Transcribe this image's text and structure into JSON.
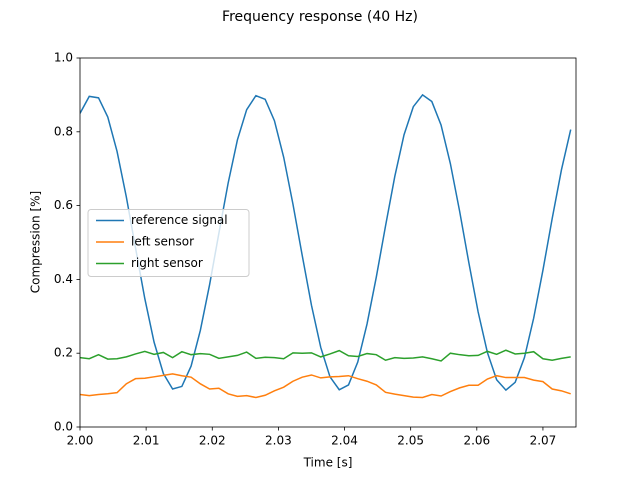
{
  "chart_data": {
    "type": "line",
    "title": "Frequency response (40 Hz)",
    "xlabel": "Time [s]",
    "ylabel": "Compression [%]",
    "x": [
      2.0,
      2.0014,
      2.0028,
      2.0042,
      2.0056,
      2.007,
      2.0084,
      2.0098,
      2.0112,
      2.0126,
      2.014,
      2.0154,
      2.0168,
      2.0182,
      2.0196,
      2.021,
      2.0224,
      2.0238,
      2.0252,
      2.0266,
      2.028,
      2.0294,
      2.0308,
      2.0322,
      2.0336,
      2.035,
      2.0364,
      2.0378,
      2.0392,
      2.0406,
      2.042,
      2.0434,
      2.0448,
      2.0462,
      2.0476,
      2.049,
      2.0504,
      2.0518,
      2.0532,
      2.0546,
      2.056,
      2.0574,
      2.0588,
      2.0602,
      2.0616,
      2.063,
      2.0644,
      2.0658,
      2.0672,
      2.0686,
      2.07,
      2.0714,
      2.0728,
      2.0742
    ],
    "series": [
      {
        "name": "reference signal",
        "color": "#1f77b4",
        "values": [
          0.85,
          0.896,
          0.892,
          0.84,
          0.747,
          0.624,
          0.485,
          0.348,
          0.23,
          0.145,
          0.103,
          0.11,
          0.165,
          0.262,
          0.386,
          0.525,
          0.661,
          0.778,
          0.86,
          0.898,
          0.888,
          0.83,
          0.731,
          0.604,
          0.465,
          0.33,
          0.216,
          0.136,
          0.101,
          0.114,
          0.176,
          0.279,
          0.406,
          0.545,
          0.679,
          0.792,
          0.868,
          0.9,
          0.882,
          0.818,
          0.714,
          0.585,
          0.445,
          0.312,
          0.202,
          0.128,
          0.1,
          0.121,
          0.188,
          0.295,
          0.425,
          0.565,
          0.697,
          0.806
        ]
      },
      {
        "name": "left sensor",
        "color": "#ff7f0e",
        "values": [
          0.088,
          0.085,
          0.088,
          0.09,
          0.093,
          0.117,
          0.131,
          0.132,
          0.136,
          0.14,
          0.144,
          0.139,
          0.135,
          0.117,
          0.103,
          0.105,
          0.09,
          0.083,
          0.085,
          0.08,
          0.086,
          0.098,
          0.108,
          0.124,
          0.135,
          0.141,
          0.133,
          0.136,
          0.137,
          0.139,
          0.131,
          0.124,
          0.114,
          0.094,
          0.089,
          0.085,
          0.081,
          0.08,
          0.088,
          0.084,
          0.096,
          0.106,
          0.113,
          0.113,
          0.13,
          0.139,
          0.134,
          0.134,
          0.134,
          0.127,
          0.123,
          0.103,
          0.098,
          0.09
        ]
      },
      {
        "name": "right sensor",
        "color": "#2ca02c",
        "values": [
          0.188,
          0.185,
          0.196,
          0.184,
          0.185,
          0.19,
          0.198,
          0.205,
          0.197,
          0.202,
          0.188,
          0.204,
          0.196,
          0.199,
          0.197,
          0.186,
          0.19,
          0.194,
          0.203,
          0.186,
          0.189,
          0.188,
          0.185,
          0.201,
          0.2,
          0.201,
          0.19,
          0.198,
          0.207,
          0.193,
          0.191,
          0.199,
          0.196,
          0.181,
          0.188,
          0.186,
          0.187,
          0.19,
          0.185,
          0.179,
          0.2,
          0.196,
          0.193,
          0.194,
          0.205,
          0.197,
          0.208,
          0.198,
          0.2,
          0.204,
          0.185,
          0.181,
          0.186,
          0.19
        ]
      }
    ],
    "xlim": [
      2.0,
      2.075
    ],
    "xticks": [
      {
        "value": 2.0,
        "label": "2.00"
      },
      {
        "value": 2.01,
        "label": "2.01"
      },
      {
        "value": 2.02,
        "label": "2.02"
      },
      {
        "value": 2.03,
        "label": "2.03"
      },
      {
        "value": 2.04,
        "label": "2.04"
      },
      {
        "value": 2.05,
        "label": "2.05"
      },
      {
        "value": 2.06,
        "label": "2.06"
      },
      {
        "value": 2.07,
        "label": "2.07"
      }
    ],
    "ylim": [
      0,
      1.0
    ],
    "yticks": [
      {
        "value": 0,
        "label": "0.0"
      },
      {
        "value": 0.2,
        "label": "0.2"
      },
      {
        "value": 0.4,
        "label": "0.4"
      },
      {
        "value": 0.6,
        "label": "0.6"
      },
      {
        "value": 0.8,
        "label": "0.8"
      },
      {
        "value": 1.0,
        "label": "1.0"
      }
    ],
    "grid": false,
    "legend": "center left"
  }
}
